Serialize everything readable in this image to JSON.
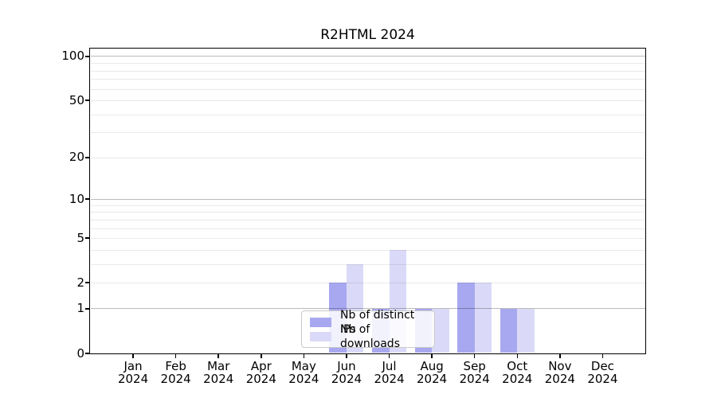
{
  "chart_data": {
    "type": "bar",
    "title": "R2HTML 2024",
    "categories": [
      "Jan",
      "Feb",
      "Mar",
      "Apr",
      "May",
      "Jun",
      "Jul",
      "Aug",
      "Sep",
      "Oct",
      "Nov",
      "Dec"
    ],
    "x_year": "2024",
    "series": [
      {
        "name": "Nb of distinct IPs",
        "color": "#a8a8f0",
        "values": [
          0,
          0,
          0,
          0,
          0,
          2,
          1,
          1,
          2,
          1,
          0,
          0
        ]
      },
      {
        "name": "Nb of downloads",
        "color": "#dadaf8",
        "values": [
          0,
          0,
          0,
          0,
          0,
          3,
          4,
          1,
          2,
          1,
          0,
          0
        ]
      }
    ],
    "y_scale": "log1p",
    "y_ticks": [
      0,
      1,
      2,
      5,
      10,
      20,
      50,
      100
    ],
    "y_minor_ticks": [
      2,
      3,
      4,
      5,
      6,
      7,
      8,
      9,
      20,
      30,
      40,
      50,
      60,
      70,
      80,
      90
    ],
    "y_major_gridlines": [
      1,
      10,
      100
    ],
    "ylim": [
      0,
      113
    ],
    "grid": true,
    "legend_position": "lower center",
    "colors": {
      "ips_bar": "#a8a8f0",
      "downloads_bar": "#dadaf8",
      "grid_major": "rgba(0,0,0,0.27)",
      "grid_minor": "rgba(0,0,0,0.085)",
      "axis": "#000000",
      "background": "#ffffff"
    }
  }
}
